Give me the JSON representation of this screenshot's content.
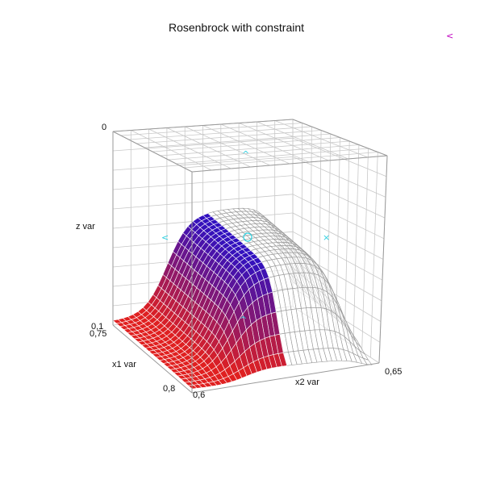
{
  "chart_data": {
    "type": "surface3d",
    "title": "Rosenbrock with constraint",
    "xlabel": "x1 var",
    "ylabel": "x2 var",
    "zlabel": "z var",
    "x_ticks": [
      "0,75",
      "0,8"
    ],
    "y_ticks": [
      "0,6",
      "0,65"
    ],
    "z_ticks": [
      "0",
      "0,1"
    ],
    "xlim": [
      0.75,
      0.8
    ],
    "ylim": [
      0.6,
      0.65
    ],
    "zlim": [
      0,
      0.1
    ],
    "grid": true,
    "surface": {
      "colored_region": "constraint satisfied",
      "low_color": "#e02020",
      "high_color": "#3010c0",
      "rejected_color": "#9a9a9a"
    },
    "markers": {
      "corner_glyph": "<",
      "corner_color": "#c000c0",
      "cyan_color": "#30d0e0",
      "glyph_up": "^",
      "glyph_left": "<",
      "glyph_x": "×"
    }
  }
}
